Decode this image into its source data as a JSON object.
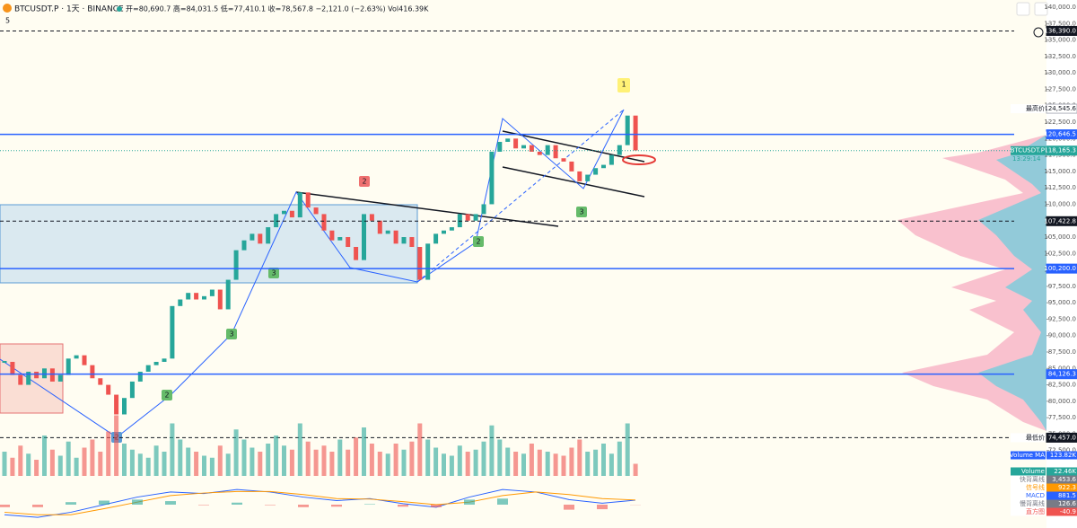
{
  "header": {
    "symbol": "BTCUSDT.P · 1天 · BINANCE",
    "ohlc": "开=80,690.7 高=84,031.5 低=77,410.1 收=78,567.8 −2,121.0 (−2.63%) Vol416.39K",
    "interval": "5",
    "timer": "13:29:14"
  },
  "chart_data": [
    {
      "type": "candlestick",
      "up_color": "#26a69a",
      "down_color": "#ef5350",
      "closes": [
        86000,
        84000,
        82500,
        84500,
        83500,
        85000,
        83000,
        84000,
        86500,
        87000,
        85500,
        83500,
        82500,
        81000,
        78000,
        80500,
        83000,
        84500,
        85500,
        86000,
        86500,
        94500,
        95500,
        96500,
        95500,
        96000,
        97000,
        94000,
        98500,
        103000,
        104500,
        105500,
        104000,
        106500,
        108500,
        109000,
        108000,
        111800,
        109500,
        108500,
        106000,
        104500,
        105000,
        103500,
        101500,
        108500,
        107500,
        105500,
        106000,
        104000,
        105000,
        103500,
        98500,
        104000,
        105500,
        106000,
        106500,
        108500,
        107500,
        108500,
        110000,
        118000,
        119500,
        120000,
        118500,
        119000,
        118000,
        117500,
        119000,
        117000,
        116500,
        115000,
        113500,
        114500,
        115500,
        116000,
        117500,
        119000,
        123500,
        118200
      ],
      "ylim": [
        70000,
        141100
      ],
      "yticks": [
        {
          "value": 140000,
          "label": "140,000.0"
        },
        {
          "value": 137500,
          "label": "137,500.0"
        },
        {
          "value": 135000,
          "label": "135,000.0"
        },
        {
          "value": 132500,
          "label": "132,500.0"
        },
        {
          "value": 130000,
          "label": "130,000.0"
        },
        {
          "value": 127500,
          "label": "127,500.0"
        },
        {
          "value": 125000,
          "label": "125,000.0"
        },
        {
          "value": 122500,
          "label": "122,500.0"
        },
        {
          "value": 120000,
          "label": "120,000.0"
        },
        {
          "value": 117500,
          "label": "117,500.0"
        },
        {
          "value": 115000,
          "label": "115,000.0"
        },
        {
          "value": 112500,
          "label": "112,500.0"
        },
        {
          "value": 110000,
          "label": "110,000.0"
        },
        {
          "value": 107500,
          "label": "107,500.0"
        },
        {
          "value": 105000,
          "label": "105,000.0"
        },
        {
          "value": 102500,
          "label": "102,500.0"
        },
        {
          "value": 100000,
          "label": "100,000.0"
        },
        {
          "value": 97500,
          "label": "97,500.0"
        },
        {
          "value": 95000,
          "label": "95,000.0"
        },
        {
          "value": 92500,
          "label": "92,500.0"
        },
        {
          "value": 90000,
          "label": "90,000.0"
        },
        {
          "value": 87500,
          "label": "87,500.0"
        },
        {
          "value": 85000,
          "label": "85,000.0"
        },
        {
          "value": 82500,
          "label": "82,500.0"
        },
        {
          "value": 80000,
          "label": "80,000.0"
        },
        {
          "value": 77500,
          "label": "77,500.0"
        },
        {
          "value": 75000,
          "label": "75,000.0"
        },
        {
          "value": 72500,
          "label": "72,500.0"
        }
      ],
      "price_lines": [
        {
          "price": {
            "value": 136390,
            "label": "136,390.0"
          },
          "color": "#131722",
          "style": "dashed"
        },
        {
          "name": "最高价",
          "price": {
            "value": 124545.6,
            "label": "124,545.6"
          },
          "color": "#b2b5be",
          "style": "none"
        },
        {
          "price": {
            "value": 120646.5,
            "label": "120,646.5"
          },
          "color": "#2962ff",
          "style": "solid"
        },
        {
          "name": "BTCUSDT.P",
          "price": {
            "value": 118165.3,
            "label": "118,165.3"
          },
          "color": "#26a69a",
          "style": "dotted"
        },
        {
          "price": {
            "value": 107422.8,
            "label": "107,422.8"
          },
          "color": "#131722",
          "style": "dashed"
        },
        {
          "price": {
            "value": 100200,
            "label": "100,200.0"
          },
          "color": "#2962ff",
          "style": "solid"
        },
        {
          "price": {
            "value": 84126.3,
            "label": "84,126.3"
          },
          "color": "#2962ff",
          "style": "solid"
        },
        {
          "name": "最低价",
          "price": {
            "value": 74457,
            "label": "74,457.0"
          },
          "color": "#131722",
          "style": "dashed"
        }
      ],
      "annotations": [
        "1",
        "2",
        "3",
        "2",
        "3",
        "3",
        "2",
        "2"
      ]
    },
    {
      "type": "bar",
      "color_up": "#26a69a",
      "color_down": "#ef5350",
      "values": [
        120,
        90,
        150,
        110,
        80,
        200,
        130,
        100,
        170,
        90,
        140,
        180,
        120,
        220,
        300,
        160,
        130,
        110,
        90,
        150,
        120,
        260,
        180,
        140,
        120,
        100,
        90,
        150,
        110,
        230,
        180,
        140,
        120,
        160,
        200,
        150,
        130,
        260,
        170,
        130,
        150,
        120,
        180,
        130,
        190,
        240,
        160,
        120,
        110,
        160,
        130,
        170,
        260,
        180,
        140,
        110,
        100,
        150,
        120,
        130,
        170,
        250,
        180,
        140,
        120,
        110,
        160,
        130,
        120,
        110,
        100,
        140,
        180,
        120,
        130,
        160,
        110,
        170,
        260,
        60
      ],
      "ylim": [
        0,
        400
      ],
      "legend": [
        {
          "name": "Volume MA",
          "value": {
            "value": 123.82,
            "label": "123.82K"
          },
          "color": "#2962ff"
        },
        {
          "name": "Volume",
          "value": {
            "value": 22.46,
            "label": "22.46K"
          },
          "color": "#26a69a"
        }
      ]
    },
    {
      "type": "macd",
      "ylim": [
        -4000,
        4000
      ],
      "series": [
        {
          "name": "MACD",
          "color": "#2962ff",
          "values": [
            -2000,
            -2500,
            -1500,
            0,
            1500,
            2500,
            2200,
            3000,
            2500,
            1500,
            800,
            1200,
            200,
            -500,
            1500,
            3000,
            2500,
            1000,
            300,
            881.5
          ]
        },
        {
          "name": "信号线",
          "color": "#ff9800",
          "values": [
            -1500,
            -2000,
            -2000,
            -800,
            500,
            1800,
            2300,
            2600,
            2600,
            2000,
            1200,
            1100,
            600,
            0,
            500,
            1800,
            2500,
            2000,
            1200,
            922.3
          ]
        },
        {
          "name": "直方图",
          "color": "#ef5350",
          "values": [
            -500,
            -500,
            500,
            800,
            1000,
            700,
            -100,
            400,
            -100,
            -500,
            -400,
            100,
            -400,
            -500,
            1000,
            1200,
            0,
            -1000,
            -900,
            -40.9
          ]
        }
      ],
      "legend": [
        {
          "name": "快背离线",
          "value": {
            "value": 3453.6,
            "label": "3,453.6"
          },
          "color": "#787b86"
        },
        {
          "name": "信号线",
          "value": {
            "value": 922.3,
            "label": "922.3"
          },
          "color": "#ff9800"
        },
        {
          "name": "MACD",
          "value": {
            "value": 881.5,
            "label": "881.5"
          },
          "color": "#2962ff"
        },
        {
          "name": "慢背离线",
          "value": {
            "value": 126.6,
            "label": "126.6"
          },
          "color": "#787b86"
        },
        {
          "name": "直方图",
          "value": {
            "value": -40.9,
            "label": "-40.9"
          },
          "color": "#ef5350"
        }
      ]
    }
  ]
}
